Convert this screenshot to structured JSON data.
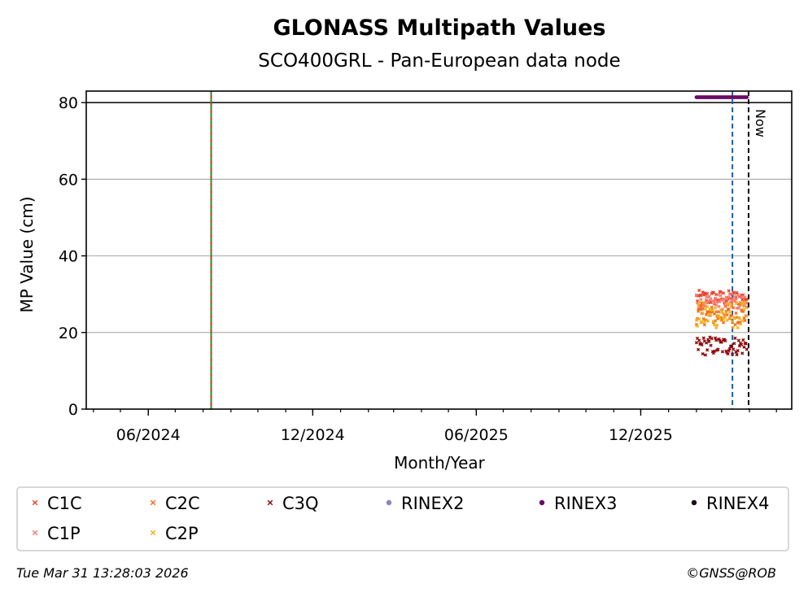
{
  "chart_data": {
    "type": "scatter",
    "title": "GLONASS Multipath Values",
    "subtitle": "SCO400GRL - Pan-European data node",
    "xlabel": "Month/Year",
    "ylabel": "MP Value (cm)",
    "x_range": [
      "2024-03-24",
      "2026-05-18"
    ],
    "ylim": [
      0,
      83
    ],
    "y_ticks": [
      0,
      20,
      40,
      60,
      80
    ],
    "y_tick_labels": [
      "0",
      "20",
      "40",
      "60",
      "80"
    ],
    "x_ticks": [
      "2024-06-01",
      "2024-12-01",
      "2025-06-01",
      "2025-12-01"
    ],
    "x_tick_labels": [
      "06/2024",
      "12/2024",
      "06/2025",
      "12/2025"
    ],
    "grid": "horizontal",
    "reference_line_y": 80,
    "vertical_lines": [
      {
        "date": "2024-08-10",
        "style": "solid-red-green-dashed"
      },
      {
        "date": "2026-03-13",
        "style": "dashed",
        "color": "#1f5fa8"
      },
      {
        "date": "2026-03-31",
        "style": "dashed",
        "color": "#000000",
        "label": "Now"
      }
    ],
    "series": [
      {
        "name": "C1C",
        "marker": "x",
        "color": "#e8412a",
        "x_start": "2026-02-01",
        "x_end": "2026-03-29",
        "y_min": 27,
        "y_max": 31
      },
      {
        "name": "C1P",
        "marker": "x",
        "color": "#f47c6e",
        "x_start": "2026-02-01",
        "x_end": "2026-03-29",
        "y_min": 26,
        "y_max": 30
      },
      {
        "name": "C2C",
        "marker": "x",
        "color": "#f26a15",
        "x_start": "2026-02-01",
        "x_end": "2026-03-29",
        "y_min": 22,
        "y_max": 27
      },
      {
        "name": "C2P",
        "marker": "x",
        "color": "#f2b01e",
        "x_start": "2026-02-01",
        "x_end": "2026-03-29",
        "y_min": 21,
        "y_max": 28
      },
      {
        "name": "C3Q",
        "marker": "x",
        "color": "#8b0000",
        "x_start": "2026-02-01",
        "x_end": "2026-03-29",
        "y_min": 14,
        "y_max": 19
      },
      {
        "name": "RINEX2",
        "marker": "dot",
        "color": "#8e7ec2",
        "points": []
      },
      {
        "name": "RINEX3",
        "marker": "dot",
        "color": "#6a0a66",
        "x_start": "2026-02-01",
        "x_end": "2026-03-29",
        "y_min": 81.4,
        "y_max": 81.4
      },
      {
        "name": "RINEX4",
        "marker": "dot",
        "color": "#1a0a1a",
        "points": []
      }
    ],
    "legend": {
      "placement": "bottom",
      "rows": [
        [
          "C1C",
          "C2C",
          "C3Q",
          "RINEX2",
          "RINEX3",
          "RINEX4"
        ],
        [
          "C1P",
          "C2P"
        ]
      ]
    }
  },
  "footer": {
    "timestamp": "Tue Mar 31 13:28:03 2026",
    "copyright": "©GNSS@ROB"
  }
}
